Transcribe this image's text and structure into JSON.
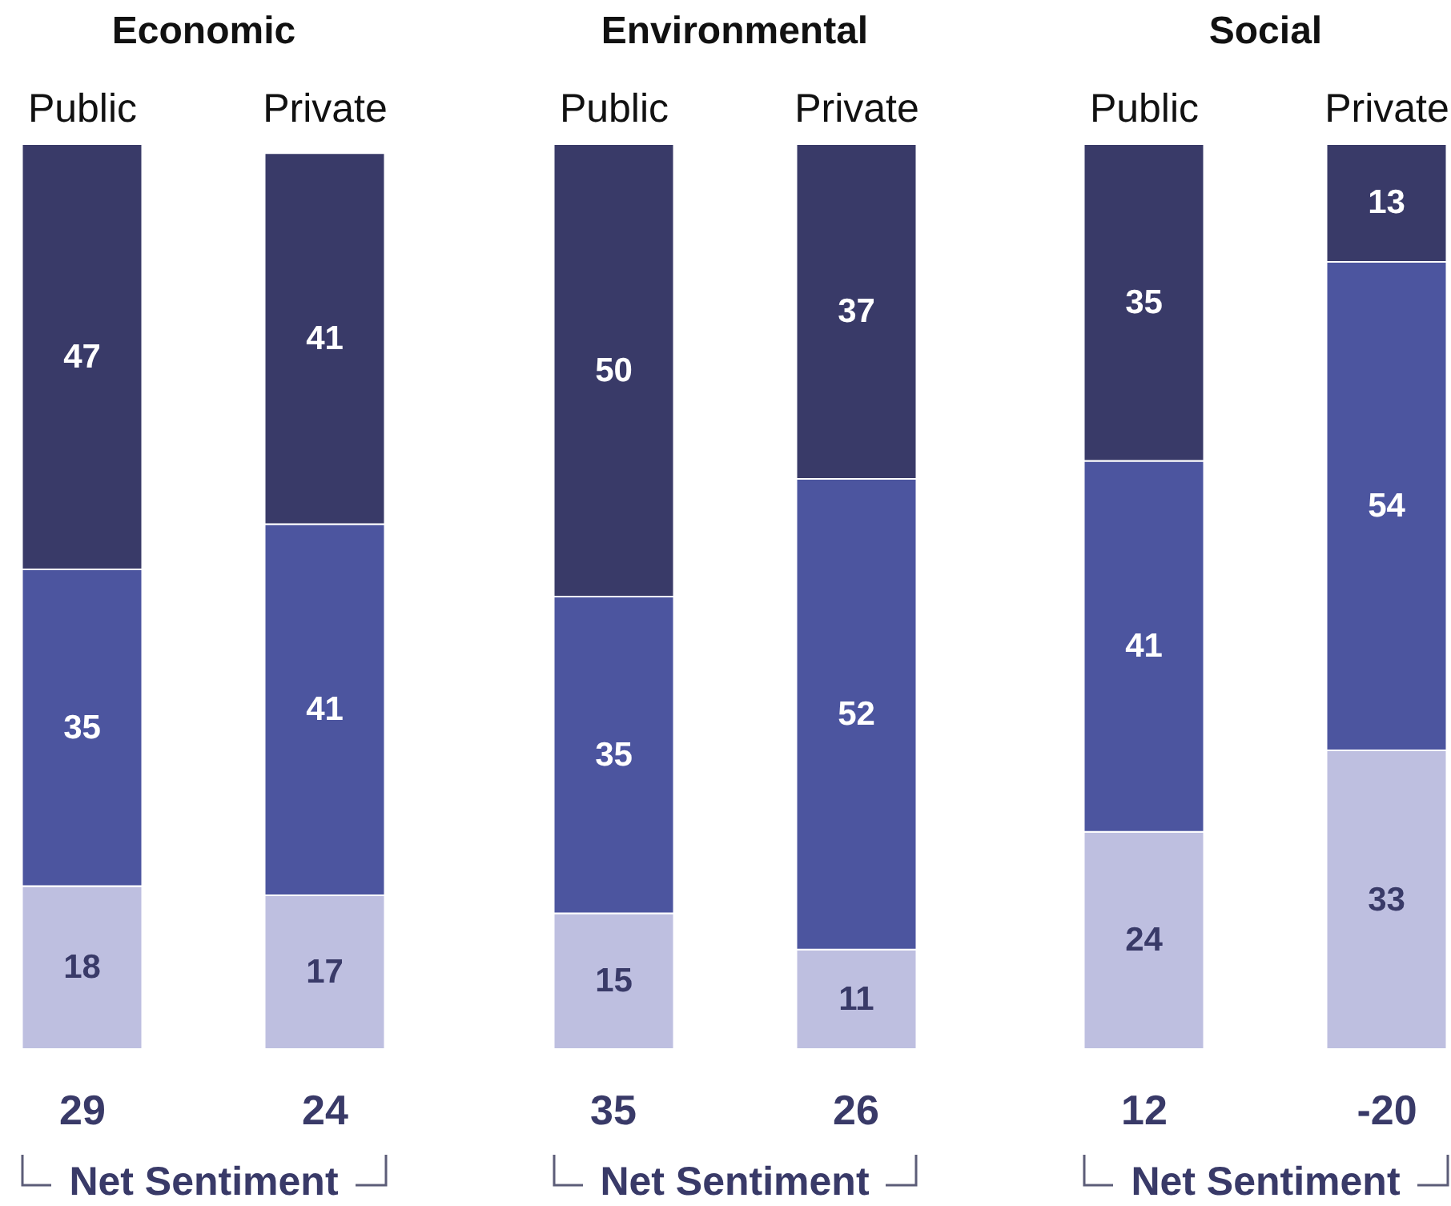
{
  "chart_data": [
    {
      "type": "bar",
      "title": "Economic",
      "categories": [
        "Public",
        "Private"
      ],
      "stacked": true,
      "data_labels": true,
      "tick_labels": "x",
      "series": [
        {
          "color": "#bebfe0",
          "values": [
            18,
            17
          ]
        },
        {
          "color": "#4c559f",
          "values": [
            35,
            41
          ]
        },
        {
          "color": "#393a68",
          "values": [
            47,
            41
          ]
        }
      ],
      "annotations": [
        "29",
        "24",
        "Net Sentiment"
      ]
    },
    {
      "type": "bar",
      "title": "Environmental",
      "categories": [
        "Public",
        "Private"
      ],
      "stacked": true,
      "data_labels": true,
      "tick_labels": "x",
      "series": [
        {
          "color": "#bebfe0",
          "values": [
            15,
            11
          ]
        },
        {
          "color": "#4c559f",
          "values": [
            35,
            52
          ]
        },
        {
          "color": "#393a68",
          "values": [
            50,
            37
          ]
        }
      ],
      "annotations": [
        "35",
        "26",
        "Net Sentiment"
      ]
    },
    {
      "type": "bar",
      "title": "Social",
      "categories": [
        "Public",
        "Private"
      ],
      "stacked": true,
      "data_labels": true,
      "tick_labels": "x",
      "series": [
        {
          "color": "#bebfe0",
          "values": [
            24,
            33
          ]
        },
        {
          "color": "#4c559f",
          "values": [
            41,
            54
          ]
        },
        {
          "color": "#393a68",
          "values": [
            35,
            13
          ]
        }
      ],
      "annotations": [
        "12",
        "-20",
        "Net Sentiment"
      ]
    }
  ]
}
